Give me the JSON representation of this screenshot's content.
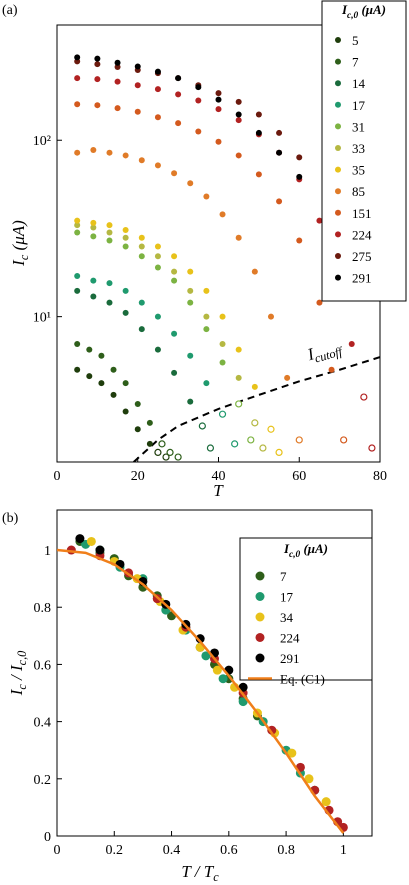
{
  "chart_data": [
    {
      "label": "(a)",
      "type": "scatter",
      "log_y": true,
      "legend": "upper right",
      "open_below_cutoff": true,
      "xlabel": [
        "T"
      ],
      "ylabel": [
        "I",
        "c",
        " (μA)"
      ],
      "legend_title": [
        "I",
        "c,0",
        " (μA)"
      ],
      "xlim": [
        0,
        80
      ],
      "xticks": [
        0,
        20,
        40,
        60,
        80
      ],
      "ylim": [
        1.5,
        450
      ],
      "yticks": [
        {
          "value": 10,
          "label": "10¹"
        },
        {
          "value": 100,
          "label": "10²"
        }
      ],
      "cutoff": {
        "label": [
          "I",
          "cutoff"
        ],
        "x": [
          19,
          25,
          30,
          40,
          50,
          60,
          70,
          80
        ],
        "values": [
          1.5,
          2.0,
          2.4,
          3.0,
          3.6,
          4.3,
          5.0,
          5.9
        ]
      },
      "series": [
        {
          "name": "5",
          "color": "#1f3d0c",
          "x": [
            5,
            8,
            11,
            14,
            17,
            20,
            23,
            25,
            27
          ],
          "values": [
            5.0,
            4.6,
            4.2,
            3.6,
            2.9,
            2.3,
            1.9,
            1.7,
            1.6
          ]
        },
        {
          "name": "7",
          "color": "#2e5e1a",
          "x": [
            5,
            8,
            11,
            14,
            17,
            20,
            23,
            26,
            28,
            30
          ],
          "values": [
            7,
            6.5,
            6.0,
            5.0,
            4.2,
            3.2,
            2.5,
            1.9,
            1.7,
            1.6
          ]
        },
        {
          "name": "14",
          "color": "#1a6b3c",
          "x": [
            5,
            9,
            13,
            17,
            21,
            25,
            29,
            33,
            36,
            38
          ],
          "values": [
            14,
            13,
            12,
            10.5,
            8.5,
            6.5,
            4.8,
            3.3,
            2.4,
            1.8
          ]
        },
        {
          "name": "17",
          "color": "#1f9a6e",
          "x": [
            5,
            9,
            13,
            17,
            21,
            25,
            29,
            33,
            37,
            41,
            44
          ],
          "values": [
            17,
            16,
            15.5,
            14,
            12,
            10,
            8,
            6,
            4.2,
            2.8,
            1.9
          ]
        },
        {
          "name": "31",
          "color": "#7cb342",
          "x": [
            5,
            9,
            13,
            17,
            21,
            25,
            29,
            33,
            37,
            41,
            45,
            48
          ],
          "values": [
            30,
            28.5,
            27,
            25,
            22,
            19,
            16,
            12,
            8.5,
            5.5,
            3.2,
            2.0
          ]
        },
        {
          "name": "33",
          "color": "#b5b842",
          "x": [
            5,
            9,
            13,
            17,
            21,
            25,
            29,
            33,
            37,
            41,
            45,
            49,
            51
          ],
          "values": [
            33,
            32,
            30,
            28,
            25,
            22,
            18,
            14,
            10,
            7,
            4.5,
            2.5,
            1.8
          ]
        },
        {
          "name": "35",
          "color": "#e8c21a",
          "x": [
            5,
            9,
            13,
            17,
            21,
            25,
            29,
            33,
            37,
            41,
            45,
            49,
            53,
            55
          ],
          "values": [
            35,
            34,
            33,
            31,
            28,
            25,
            22,
            18,
            14,
            10,
            6.5,
            4,
            2.3,
            1.7
          ]
        },
        {
          "name": "85",
          "color": "#e07b28",
          "x": [
            5,
            9,
            13,
            17,
            21,
            25,
            29,
            33,
            37,
            41,
            45,
            49,
            53,
            57,
            60
          ],
          "values": [
            85,
            88,
            85,
            82,
            77,
            72,
            65,
            57,
            48,
            38,
            28,
            18,
            10,
            4.5,
            2
          ]
        },
        {
          "name": "151",
          "color": "#d45a1e",
          "x": [
            5,
            10,
            15,
            20,
            25,
            30,
            35,
            40,
            45,
            50,
            55,
            60,
            65,
            68,
            71
          ],
          "values": [
            160,
            158,
            152,
            145,
            135,
            125,
            112,
            98,
            82,
            64,
            45,
            27,
            12,
            5,
            2
          ]
        },
        {
          "name": "224",
          "color": "#b22222",
          "x": [
            5,
            10,
            15,
            20,
            25,
            30,
            35,
            40,
            45,
            50,
            55,
            60,
            65,
            70,
            73,
            76,
            78
          ],
          "values": [
            225,
            222,
            215,
            205,
            195,
            182,
            168,
            150,
            130,
            108,
            85,
            60,
            35,
            15,
            7,
            3.5,
            1.8
          ]
        },
        {
          "name": "275",
          "color": "#6b1a0e",
          "x": [
            5,
            10,
            15,
            20,
            25,
            30,
            35,
            40,
            45,
            50,
            55,
            60
          ],
          "values": [
            280,
            270,
            260,
            250,
            240,
            225,
            205,
            185,
            165,
            140,
            110,
            80
          ]
        },
        {
          "name": "291",
          "color": "#000000",
          "x": [
            5,
            10,
            15,
            20,
            25,
            30,
            35,
            40,
            45,
            50,
            55,
            60
          ],
          "values": [
            295,
            290,
            275,
            262,
            245,
            225,
            200,
            170,
            140,
            110,
            85,
            62
          ]
        }
      ]
    },
    {
      "label": "(b)",
      "type": "scatter",
      "legend": "upper right",
      "xlabel": [
        "T / T",
        "c"
      ],
      "ylabel": [
        "I",
        "c",
        " / I",
        "c,0"
      ],
      "legend_title": [
        "I",
        "c,0",
        " (μA)"
      ],
      "xlim": [
        0,
        1.1
      ],
      "xticks": [
        0,
        0.2,
        0.4,
        0.6,
        0.8,
        1
      ],
      "ylim": [
        0,
        1.14
      ],
      "yticks": [
        0,
        0.2,
        0.4,
        0.6,
        0.8,
        1
      ],
      "series": [
        {
          "name": "7",
          "color": "#2e5e1a",
          "x": [
            0.08,
            0.15,
            0.2,
            0.25,
            0.3,
            0.35,
            0.4,
            0.45,
            0.5,
            0.55,
            0.6,
            0.65,
            0.7
          ],
          "values": [
            1.03,
            0.99,
            0.97,
            0.91,
            0.87,
            0.84,
            0.77,
            0.73,
            0.66,
            0.6,
            0.55,
            0.48,
            0.42
          ]
        },
        {
          "name": "17",
          "color": "#1f9a6e",
          "x": [
            0.1,
            0.15,
            0.22,
            0.3,
            0.38,
            0.45,
            0.52,
            0.58,
            0.65,
            0.72,
            0.8,
            0.85,
            0.9
          ],
          "values": [
            1.02,
            1.0,
            0.94,
            0.9,
            0.79,
            0.72,
            0.63,
            0.55,
            0.47,
            0.4,
            0.3,
            0.22,
            0.16
          ]
        },
        {
          "name": "34",
          "color": "#e8c21a",
          "x": [
            0.12,
            0.2,
            0.28,
            0.36,
            0.44,
            0.5,
            0.56,
            0.62,
            0.7,
            0.76,
            0.82,
            0.88,
            0.94
          ],
          "values": [
            1.03,
            0.96,
            0.9,
            0.82,
            0.72,
            0.66,
            0.58,
            0.52,
            0.43,
            0.36,
            0.29,
            0.2,
            0.12
          ]
        },
        {
          "name": "224",
          "color": "#b22222",
          "x": [
            0.05,
            0.15,
            0.25,
            0.35,
            0.45,
            0.55,
            0.65,
            0.75,
            0.85,
            0.9,
            0.95,
            0.98,
            1.0
          ],
          "values": [
            1.0,
            0.98,
            0.92,
            0.83,
            0.73,
            0.62,
            0.5,
            0.37,
            0.24,
            0.16,
            0.09,
            0.05,
            0.03
          ]
        },
        {
          "name": "291",
          "color": "#000000",
          "x": [
            0.08,
            0.15,
            0.22,
            0.3,
            0.38,
            0.45,
            0.5,
            0.55,
            0.6,
            0.65
          ],
          "values": [
            1.04,
            1.0,
            0.95,
            0.89,
            0.81,
            0.74,
            0.69,
            0.64,
            0.58,
            0.52
          ]
        },
        {
          "name": "Eq. (C1)",
          "color": "#f07f1a",
          "kind": "line",
          "x": [
            0,
            0.1,
            0.2,
            0.3,
            0.4,
            0.5,
            0.6,
            0.7,
            0.8,
            0.9,
            1
          ],
          "values": [
            1,
            0.99,
            0.95,
            0.88,
            0.79,
            0.68,
            0.56,
            0.43,
            0.29,
            0.14,
            0.01
          ]
        }
      ]
    }
  ]
}
